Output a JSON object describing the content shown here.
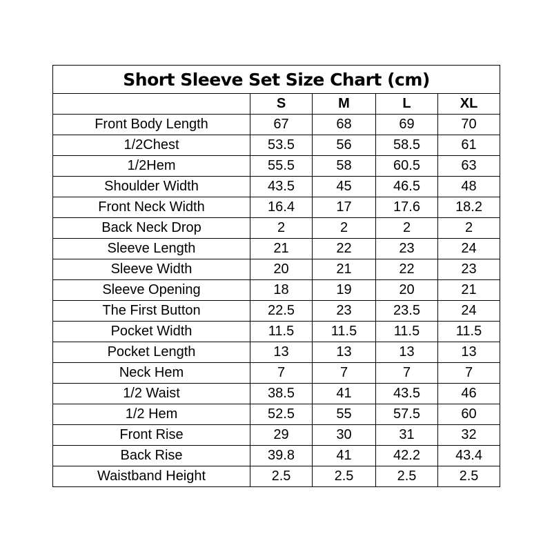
{
  "title": "Short Sleeve Set Size Chart (cm)",
  "sizes": [
    "S",
    "M",
    "L",
    "XL"
  ],
  "rows": [
    {
      "label": "Front Body Length",
      "values": [
        "67",
        "68",
        "69",
        "70"
      ]
    },
    {
      "label": "1/2Chest",
      "values": [
        "53.5",
        "56",
        "58.5",
        "61"
      ]
    },
    {
      "label": "1/2Hem",
      "values": [
        "55.5",
        "58",
        "60.5",
        "63"
      ]
    },
    {
      "label": "Shoulder Width",
      "values": [
        "43.5",
        "45",
        "46.5",
        "48"
      ]
    },
    {
      "label": "Front Neck Width",
      "values": [
        "16.4",
        "17",
        "17.6",
        "18.2"
      ]
    },
    {
      "label": "Back Neck Drop",
      "values": [
        "2",
        "2",
        "2",
        "2"
      ]
    },
    {
      "label": "Sleeve Length",
      "values": [
        "21",
        "22",
        "23",
        "24"
      ]
    },
    {
      "label": "Sleeve Width",
      "values": [
        "20",
        "21",
        "22",
        "23"
      ]
    },
    {
      "label": "Sleeve Opening",
      "values": [
        "18",
        "19",
        "20",
        "21"
      ]
    },
    {
      "label": "The First Button",
      "values": [
        "22.5",
        "23",
        "23.5",
        "24"
      ]
    },
    {
      "label": "Pocket Width",
      "values": [
        "11.5",
        "11.5",
        "11.5",
        "11.5"
      ]
    },
    {
      "label": "Pocket Length",
      "values": [
        "13",
        "13",
        "13",
        "13"
      ]
    },
    {
      "label": "Neck Hem",
      "values": [
        "7",
        "7",
        "7",
        "7"
      ]
    },
    {
      "label": "1/2 Waist",
      "values": [
        "38.5",
        "41",
        "43.5",
        "46"
      ]
    },
    {
      "label": "1/2 Hem",
      "values": [
        "52.5",
        "55",
        "57.5",
        "60"
      ]
    },
    {
      "label": "Front Rise",
      "values": [
        "29",
        "30",
        "31",
        "32"
      ]
    },
    {
      "label": "Back Rise",
      "values": [
        "39.8",
        "41",
        "42.2",
        "43.4"
      ]
    },
    {
      "label": "Waistband Height",
      "values": [
        "2.5",
        "2.5",
        "2.5",
        "2.5"
      ]
    }
  ]
}
